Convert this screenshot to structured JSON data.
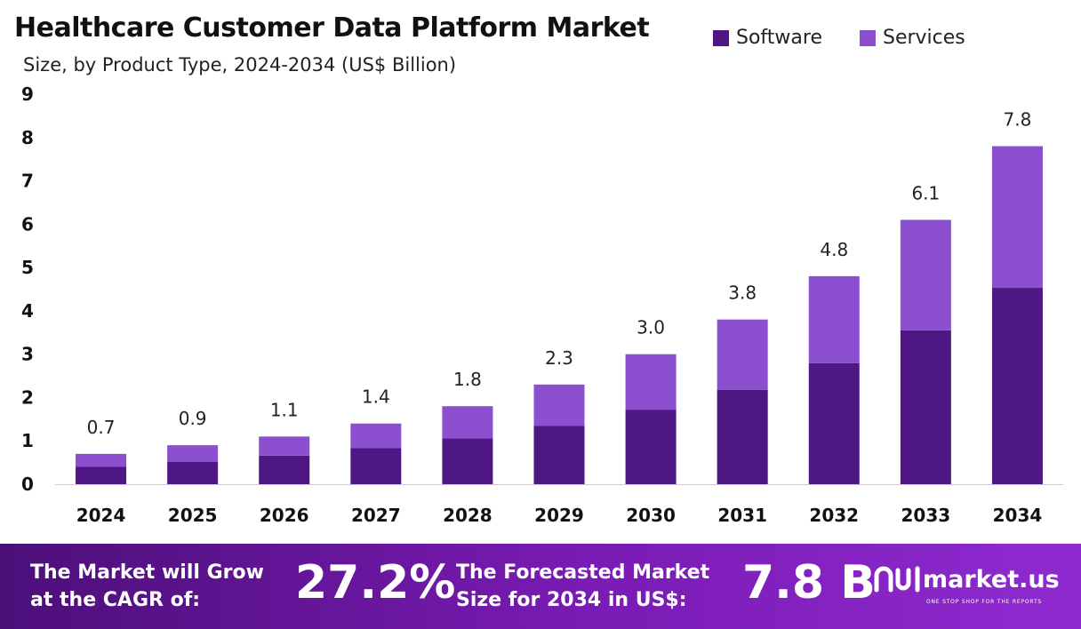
{
  "header": {
    "title": "Healthcare Customer Data Platform Market",
    "subtitle": "Size, by Product Type, 2024-2034 (US$ Billion)"
  },
  "chart_data": {
    "type": "bar",
    "stacked": true,
    "categories": [
      "2024",
      "2025",
      "2026",
      "2027",
      "2028",
      "2029",
      "2030",
      "2031",
      "2032",
      "2033",
      "2034"
    ],
    "series": [
      {
        "name": "Software",
        "color": "#4e1783",
        "values": [
          0.4,
          0.52,
          0.66,
          0.83,
          1.06,
          1.35,
          1.72,
          2.18,
          2.79,
          3.55,
          4.53
        ]
      },
      {
        "name": "Services",
        "color": "#8c4fcf",
        "values": [
          0.3,
          0.38,
          0.44,
          0.57,
          0.74,
          0.95,
          1.28,
          1.62,
          2.01,
          2.55,
          3.27
        ]
      }
    ],
    "totals": [
      "0.7",
      "0.9",
      "1.1",
      "1.4",
      "1.8",
      "2.3",
      "3.0",
      "3.8",
      "4.8",
      "6.1",
      "7.8"
    ],
    "ylim": [
      0,
      9
    ],
    "yticks": [
      "0",
      "1",
      "2",
      "3",
      "4",
      "5",
      "6",
      "7",
      "8",
      "9"
    ],
    "legend": "top-right",
    "grid": false
  },
  "footer": {
    "cagr_label_line1": "The Market will Grow",
    "cagr_label_line2": "at the CAGR of:",
    "cagr_value": "27.2%",
    "forecast_label_line1": "The Forecasted Market",
    "forecast_label_line2": "Size for 2034 in US$:",
    "forecast_value": "7.8 B",
    "brand_name": "market.us",
    "brand_tagline": "ONE STOP SHOP FOR THE REPORTS"
  }
}
